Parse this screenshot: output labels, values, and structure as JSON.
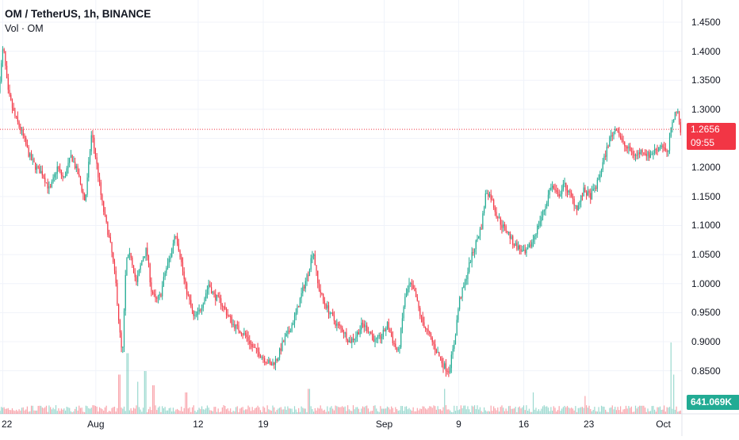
{
  "header": {
    "title": "OM / TetherUS, 1h, BINANCE",
    "volume_label": "Vol · OM"
  },
  "colors": {
    "up": "#22ab94",
    "down": "#f23645",
    "grid": "#f0f3fa",
    "text": "#131722"
  },
  "price_badge": {
    "price": "1.2656",
    "countdown": "09:55"
  },
  "volume_badge": {
    "value": "641.069K"
  },
  "chart_data": {
    "type": "candlestick",
    "title": "OM / TetherUS, 1h, BINANCE",
    "y_ticks": [
      "1.4500",
      "1.4000",
      "1.3500",
      "1.3000",
      "1.2500",
      "1.2000",
      "1.1500",
      "1.1000",
      "1.0500",
      "1.0000",
      "0.9500",
      "0.9000",
      "0.8500"
    ],
    "ylim": [
      0.81,
      1.465
    ],
    "x_ticks": [
      "22",
      "Aug",
      "12",
      "19",
      "Sep",
      "9",
      "16",
      "23",
      "Oct"
    ],
    "x_tick_days": [
      -10,
      0,
      11,
      18,
      31,
      39,
      46,
      53,
      61
    ],
    "x_range_days": [
      -10.3,
      63.0
    ],
    "last_price": 1.2656,
    "price_path": [
      [
        -10.3,
        1.33
      ],
      [
        -9.8,
        1.41
      ],
      [
        -9.3,
        1.33
      ],
      [
        -8.6,
        1.29
      ],
      [
        -7.8,
        1.26
      ],
      [
        -7.0,
        1.22
      ],
      [
        -6.3,
        1.2
      ],
      [
        -5.6,
        1.19
      ],
      [
        -4.8,
        1.16
      ],
      [
        -4.0,
        1.2
      ],
      [
        -3.3,
        1.18
      ],
      [
        -2.5,
        1.22
      ],
      [
        -1.8,
        1.19
      ],
      [
        -1.0,
        1.14
      ],
      [
        -0.3,
        1.26
      ],
      [
        0.2,
        1.21
      ],
      [
        0.8,
        1.14
      ],
      [
        1.3,
        1.1
      ],
      [
        1.8,
        1.06
      ],
      [
        2.3,
        1.0
      ],
      [
        2.7,
        0.92
      ],
      [
        3.0,
        0.87
      ],
      [
        3.4,
        1.04
      ],
      [
        3.9,
        1.05
      ],
      [
        4.5,
        1.0
      ],
      [
        5.1,
        1.04
      ],
      [
        5.6,
        1.06
      ],
      [
        6.1,
        0.99
      ],
      [
        6.6,
        0.97
      ],
      [
        7.1,
        0.98
      ],
      [
        7.6,
        1.02
      ],
      [
        8.2,
        1.05
      ],
      [
        8.7,
        1.09
      ],
      [
        9.2,
        1.05
      ],
      [
        9.7,
        1.0
      ],
      [
        10.2,
        0.97
      ],
      [
        10.7,
        0.94
      ],
      [
        11.2,
        0.95
      ],
      [
        11.7,
        0.97
      ],
      [
        12.3,
        1.0
      ],
      [
        12.8,
        0.98
      ],
      [
        13.5,
        0.97
      ],
      [
        14.2,
        0.95
      ],
      [
        14.9,
        0.93
      ],
      [
        15.6,
        0.92
      ],
      [
        16.3,
        0.91
      ],
      [
        17.0,
        0.89
      ],
      [
        17.7,
        0.88
      ],
      [
        18.3,
        0.87
      ],
      [
        19.0,
        0.86
      ],
      [
        19.6,
        0.87
      ],
      [
        20.3,
        0.9
      ],
      [
        21.0,
        0.92
      ],
      [
        21.7,
        0.95
      ],
      [
        22.4,
        0.99
      ],
      [
        23.0,
        1.02
      ],
      [
        23.5,
        1.06
      ],
      [
        24.0,
        1.0
      ],
      [
        24.6,
        0.97
      ],
      [
        25.3,
        0.95
      ],
      [
        26.0,
        0.93
      ],
      [
        26.7,
        0.92
      ],
      [
        27.4,
        0.9
      ],
      [
        28.1,
        0.91
      ],
      [
        28.8,
        0.93
      ],
      [
        29.5,
        0.92
      ],
      [
        30.2,
        0.9
      ],
      [
        30.9,
        0.91
      ],
      [
        31.5,
        0.93
      ],
      [
        32.1,
        0.9
      ],
      [
        32.7,
        0.88
      ],
      [
        33.3,
        0.97
      ],
      [
        33.9,
        1.0
      ],
      [
        34.5,
        0.98
      ],
      [
        35.1,
        0.94
      ],
      [
        35.7,
        0.92
      ],
      [
        36.3,
        0.9
      ],
      [
        36.9,
        0.88
      ],
      [
        37.5,
        0.86
      ],
      [
        38.1,
        0.85
      ],
      [
        38.7,
        0.9
      ],
      [
        39.2,
        0.97
      ],
      [
        39.8,
        1.0
      ],
      [
        40.4,
        1.04
      ],
      [
        41.0,
        1.07
      ],
      [
        41.6,
        1.1
      ],
      [
        42.1,
        1.16
      ],
      [
        42.6,
        1.15
      ],
      [
        43.2,
        1.12
      ],
      [
        43.8,
        1.1
      ],
      [
        44.4,
        1.09
      ],
      [
        45.0,
        1.07
      ],
      [
        45.7,
        1.06
      ],
      [
        46.3,
        1.05
      ],
      [
        47.0,
        1.07
      ],
      [
        47.7,
        1.1
      ],
      [
        48.4,
        1.13
      ],
      [
        49.1,
        1.17
      ],
      [
        49.8,
        1.15
      ],
      [
        50.5,
        1.17
      ],
      [
        51.2,
        1.15
      ],
      [
        51.9,
        1.13
      ],
      [
        52.6,
        1.16
      ],
      [
        53.3,
        1.15
      ],
      [
        54.0,
        1.17
      ],
      [
        54.7,
        1.21
      ],
      [
        55.4,
        1.25
      ],
      [
        56.1,
        1.27
      ],
      [
        56.8,
        1.24
      ],
      [
        57.5,
        1.23
      ],
      [
        58.2,
        1.22
      ],
      [
        58.9,
        1.23
      ],
      [
        59.6,
        1.22
      ],
      [
        60.3,
        1.23
      ],
      [
        61.0,
        1.24
      ],
      [
        61.6,
        1.22
      ],
      [
        62.1,
        1.28
      ],
      [
        62.6,
        1.3
      ],
      [
        63.0,
        1.2656
      ]
    ],
    "volume_spikes": [
      [
        2.5,
        0.55
      ],
      [
        3.4,
        0.85
      ],
      [
        4.5,
        0.45
      ],
      [
        5.3,
        0.6
      ],
      [
        6.2,
        0.4
      ],
      [
        9.7,
        0.3
      ],
      [
        22.9,
        0.35
      ],
      [
        37.5,
        0.35
      ],
      [
        47.0,
        0.3
      ],
      [
        52.6,
        0.25
      ],
      [
        61.8,
        1.0
      ],
      [
        62.1,
        0.55
      ]
    ]
  }
}
